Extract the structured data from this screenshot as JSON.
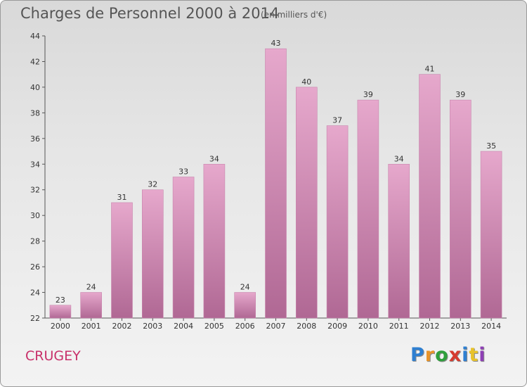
{
  "title": "Charges de Personnel 2000 à 2014",
  "subtitle": "(en milliers d'€)",
  "place": "CRUGEY",
  "logo": "Proxiti",
  "colors": {
    "bar_top": "#e6a8cc",
    "bar_bottom": "#b06894",
    "title": "#555555",
    "place": "#c8306a"
  },
  "chart_data": {
    "type": "bar",
    "categories": [
      "2000",
      "2001",
      "2002",
      "2003",
      "2004",
      "2005",
      "2006",
      "2007",
      "2008",
      "2009",
      "2010",
      "2011",
      "2012",
      "2013",
      "2014"
    ],
    "values": [
      23,
      24,
      31,
      32,
      33,
      34,
      24,
      43,
      40,
      37,
      39,
      34,
      41,
      39,
      35
    ],
    "ylim": [
      22,
      44
    ],
    "yticks": [
      22,
      24,
      26,
      28,
      30,
      32,
      34,
      36,
      38,
      40,
      42,
      44
    ],
    "grid": false,
    "legend": "none"
  }
}
